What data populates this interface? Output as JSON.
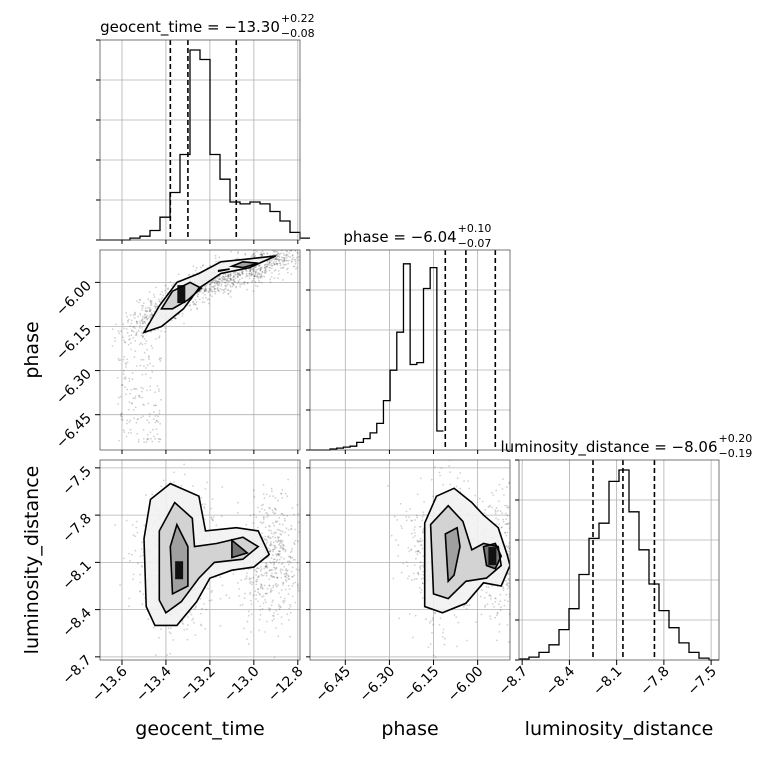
{
  "chart_data": {
    "type": "corner",
    "parameters": [
      "geocent_time",
      "phase",
      "luminosity_distance"
    ],
    "axis_labels": [
      "geocent_time",
      "phase",
      "luminosity_distance"
    ],
    "ranges": [
      [
        -13.7,
        -12.79
      ],
      [
        -6.57,
        -5.89
      ],
      [
        -8.72,
        -7.45
      ]
    ],
    "ticks": {
      "geocent_time": {
        "values": [
          -13.6,
          -13.4,
          -13.2,
          -13.0,
          -12.8
        ],
        "labels": [
          "−13.6",
          "−13.4",
          "−13.2",
          "−13.0",
          "−12.8"
        ]
      },
      "phase": {
        "values": [
          -6.45,
          -6.3,
          -6.15,
          -6.0
        ],
        "labels": [
          "−6.45",
          "−6.30",
          "−6.15",
          "−6.00"
        ]
      },
      "luminosity_distance": {
        "values": [
          -8.7,
          -8.4,
          -8.1,
          -7.8,
          -7.5
        ],
        "labels": [
          "−8.7",
          "−8.4",
          "−8.1",
          "−7.8",
          "−7.5"
        ]
      }
    },
    "titles": [
      {
        "param": "geocent_time",
        "median": "−13.30",
        "plus": "+0.22",
        "minus": "−0.08",
        "text": "geocent_time = −13.30"
      },
      {
        "param": "phase",
        "median": "−6.04",
        "plus": "+0.10",
        "minus": "−0.07",
        "text": "phase = −6.04"
      },
      {
        "param": "luminosity_distance",
        "median": "−8.06",
        "plus": "+0.20",
        "minus": "−0.19",
        "text": "luminosity_distance = −8.06"
      }
    ],
    "quantiles": {
      "geocent_time": [
        -13.38,
        -13.3,
        -13.08
      ],
      "phase": [
        -6.11,
        -6.04,
        -5.94
      ],
      "luminosity_distance": [
        -8.25,
        -8.06,
        -7.86
      ]
    },
    "histograms": {
      "geocent_time": {
        "bin_width": 0.0455,
        "bins_start": -13.7,
        "counts": [
          0,
          0,
          0,
          0.01,
          0.02,
          0.05,
          0.12,
          0.25,
          0.45,
          1.0,
          0.95,
          0.45,
          0.32,
          0.2,
          0.19,
          0.2,
          0.19,
          0.15,
          0.1,
          0.04,
          0.01
        ]
      },
      "phase": {
        "bin_width": 0.0227,
        "bins_start": -6.57,
        "counts": [
          0,
          0,
          0,
          0.005,
          0.01,
          0.015,
          0.02,
          0.04,
          0.06,
          0.09,
          0.14,
          0.26,
          0.42,
          0.62,
          0.98,
          0.45,
          0.46,
          0.85,
          0.96,
          0.1
        ]
      },
      "luminosity_distance": {
        "bin_width": 0.0635,
        "bins_start": -8.72,
        "counts": [
          0.005,
          0.015,
          0.04,
          0.08,
          0.16,
          0.27,
          0.45,
          0.64,
          0.72,
          0.94,
          1.0,
          0.78,
          0.58,
          0.4,
          0.26,
          0.17,
          0.09,
          0.04,
          0.01,
          0.0
        ]
      }
    },
    "contour_plots": {
      "phase_vs_geocent_time": {
        "x_param": "geocent_time",
        "y_param": "phase",
        "contours": [
          [
            [
              -13.5,
              -6.17
            ],
            [
              -13.43,
              -6.08
            ],
            [
              -13.35,
              -6.0
            ],
            [
              -13.25,
              -5.97
            ],
            [
              -13.15,
              -5.93
            ],
            [
              -13.02,
              -5.92
            ],
            [
              -12.9,
              -5.91
            ],
            [
              -13.02,
              -5.95
            ],
            [
              -13.15,
              -5.97
            ],
            [
              -13.25,
              -6.02
            ],
            [
              -13.32,
              -6.09
            ],
            [
              -13.42,
              -6.15
            ],
            [
              -13.5,
              -6.17
            ]
          ],
          [
            [
              -13.42,
              -6.09
            ],
            [
              -13.37,
              -6.03
            ],
            [
              -13.29,
              -6.0
            ],
            [
              -13.24,
              -6.02
            ],
            [
              -13.3,
              -6.06
            ],
            [
              -13.37,
              -6.09
            ],
            [
              -13.42,
              -6.09
            ]
          ],
          [
            [
              -13.1,
              -5.945
            ],
            [
              -13.05,
              -5.93
            ],
            [
              -12.98,
              -5.935
            ],
            [
              -13.05,
              -5.95
            ],
            [
              -13.1,
              -5.945
            ]
          ],
          [
            [
              -13.16,
              -5.96
            ],
            [
              -13.11,
              -5.955
            ],
            [
              -13.16,
              -5.962
            ],
            [
              -13.16,
              -5.96
            ]
          ]
        ],
        "density_peaks": [
          [
            -13.33,
            -6.04
          ]
        ]
      },
      "luminosity_distance_vs_geocent_time": {
        "x_param": "geocent_time",
        "y_param": "luminosity_distance",
        "contours": [
          [
            [
              -13.49,
              -8.38
            ],
            [
              -13.5,
              -7.95
            ],
            [
              -13.47,
              -7.7
            ],
            [
              -13.38,
              -7.6
            ],
            [
              -13.25,
              -7.68
            ],
            [
              -13.22,
              -7.9
            ],
            [
              -13.08,
              -7.88
            ],
            [
              -12.98,
              -7.9
            ],
            [
              -12.93,
              -8.05
            ],
            [
              -13.0,
              -8.13
            ],
            [
              -13.1,
              -8.15
            ],
            [
              -13.2,
              -8.2
            ],
            [
              -13.26,
              -8.35
            ],
            [
              -13.35,
              -8.5
            ],
            [
              -13.45,
              -8.5
            ],
            [
              -13.49,
              -8.38
            ]
          ],
          [
            [
              -13.43,
              -8.34
            ],
            [
              -13.43,
              -7.9
            ],
            [
              -13.36,
              -7.72
            ],
            [
              -13.28,
              -7.82
            ],
            [
              -13.27,
              -8.0
            ],
            [
              -13.17,
              -7.98
            ],
            [
              -13.05,
              -7.94
            ],
            [
              -12.98,
              -8.0
            ],
            [
              -13.05,
              -8.08
            ],
            [
              -13.18,
              -8.1
            ],
            [
              -13.25,
              -8.2
            ],
            [
              -13.33,
              -8.35
            ],
            [
              -13.4,
              -8.42
            ],
            [
              -13.43,
              -8.34
            ]
          ],
          [
            [
              -13.37,
              -8.3
            ],
            [
              -13.38,
              -8.0
            ],
            [
              -13.35,
              -7.86
            ],
            [
              -13.3,
              -8.0
            ],
            [
              -13.3,
              -8.25
            ],
            [
              -13.37,
              -8.3
            ]
          ],
          [
            [
              -13.1,
              -8.07
            ],
            [
              -13.1,
              -7.96
            ],
            [
              -13.03,
              -8.04
            ],
            [
              -13.1,
              -8.07
            ]
          ]
        ],
        "density_peaks": [
          [
            -13.34,
            -8.15
          ]
        ]
      },
      "luminosity_distance_vs_phase": {
        "x_param": "phase",
        "y_param": "luminosity_distance",
        "contours": [
          [
            [
              -6.18,
              -8.38
            ],
            [
              -6.18,
              -7.85
            ],
            [
              -6.14,
              -7.68
            ],
            [
              -6.08,
              -7.63
            ],
            [
              -6.02,
              -7.72
            ],
            [
              -5.98,
              -7.8
            ],
            [
              -5.93,
              -7.88
            ],
            [
              -5.9,
              -8.05
            ],
            [
              -5.89,
              -8.12
            ],
            [
              -5.92,
              -8.25
            ],
            [
              -5.98,
              -8.23
            ],
            [
              -6.04,
              -8.36
            ],
            [
              -6.12,
              -8.42
            ],
            [
              -6.18,
              -8.38
            ]
          ],
          [
            [
              -6.15,
              -8.3
            ],
            [
              -6.16,
              -7.86
            ],
            [
              -6.1,
              -7.74
            ],
            [
              -6.05,
              -7.84
            ],
            [
              -6.02,
              -8.02
            ],
            [
              -5.98,
              -7.98
            ],
            [
              -5.93,
              -8.0
            ],
            [
              -5.92,
              -8.12
            ],
            [
              -5.97,
              -8.2
            ],
            [
              -6.04,
              -8.22
            ],
            [
              -6.1,
              -8.33
            ],
            [
              -6.15,
              -8.3
            ]
          ],
          [
            [
              -6.1,
              -8.22
            ],
            [
              -6.11,
              -7.92
            ],
            [
              -6.07,
              -7.88
            ],
            [
              -6.06,
              -8.0
            ],
            [
              -6.08,
              -8.18
            ],
            [
              -6.1,
              -8.22
            ]
          ],
          [
            [
              -5.97,
              -8.12
            ],
            [
              -5.98,
              -8.0
            ],
            [
              -5.94,
              -7.98
            ],
            [
              -5.92,
              -8.06
            ],
            [
              -5.94,
              -8.14
            ],
            [
              -5.97,
              -8.12
            ]
          ]
        ],
        "density_peaks": [
          [
            -5.95,
            -8.06
          ]
        ]
      }
    },
    "grid": true
  }
}
